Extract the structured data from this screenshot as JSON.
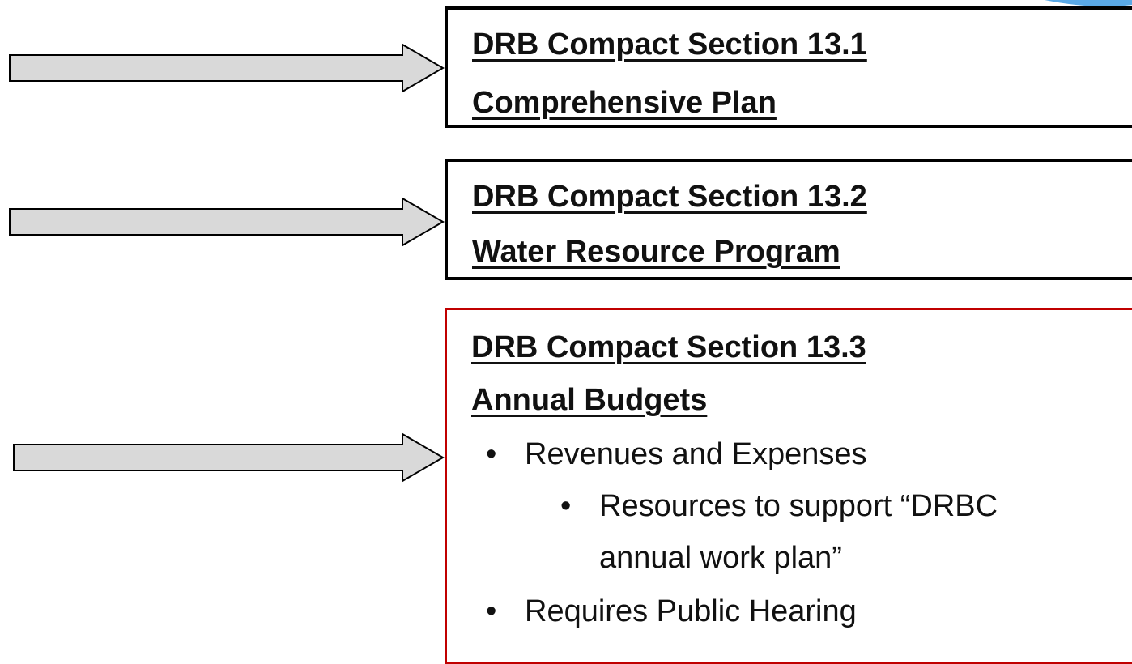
{
  "boxes": [
    {
      "title": "DRB Compact Section 13.1",
      "subtitle": "Comprehensive Plan"
    },
    {
      "title": "DRB Compact Section 13.2",
      "subtitle": "Water Resource Program"
    },
    {
      "title": "DRB Compact Section 13.3",
      "subtitle": "Annual Budgets",
      "bullets": [
        {
          "text": "Revenues and Expenses",
          "items": [
            "Resources to support “DRBC annual work plan”"
          ]
        },
        {
          "text": "Requires Public Hearing"
        }
      ]
    }
  ]
}
